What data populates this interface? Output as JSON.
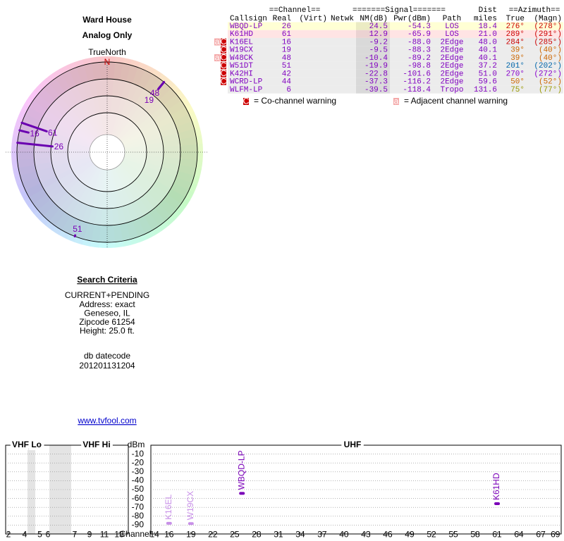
{
  "header": {
    "title": "Ward House",
    "subtitle": "Analog Only"
  },
  "table": {
    "group_headers": {
      "channel": "==Channel==",
      "signal": "=======Signal=======",
      "dist": "Dist",
      "azimuth": "==Azimuth=="
    },
    "columns": {
      "callsign": "Callsign",
      "real": "Real",
      "virt": "(Virt)",
      "netwk": "Netwk",
      "nm": "NM(dB)",
      "pwr": "Pwr(dBm)",
      "path": "Path",
      "miles": "miles",
      "true": "True",
      "magn": "(Magn)"
    },
    "rows": [
      {
        "callsign": "WBQD-LP",
        "real": "26",
        "nm": "24.5",
        "pwr": "-54.3",
        "path": "LOS",
        "miles": "18.4",
        "true": "276°",
        "magn": "(278°)",
        "row_color": "#ffffd4",
        "azimuth_color": "#cc0000"
      },
      {
        "callsign": "K61HD",
        "real": "61",
        "nm": "12.9",
        "pwr": "-65.9",
        "path": "LOS",
        "miles": "21.0",
        "true": "289°",
        "magn": "(291°)",
        "row_color": "#ffe4e4",
        "azimuth_color": "#cc0000"
      },
      {
        "callsign": "K16EL",
        "real": "16",
        "nm": "-9.2",
        "pwr": "-88.0",
        "path": "2Edge",
        "miles": "48.0",
        "true": "284°",
        "magn": "(285°)",
        "row_color": "#ececec",
        "azimuth_color": "#cc0000",
        "warnings": [
          "a",
          "C"
        ]
      },
      {
        "callsign": "W19CX",
        "real": "19",
        "nm": "-9.5",
        "pwr": "-88.3",
        "path": "2Edge",
        "miles": "40.1",
        "true": "39°",
        "magn": "(40°)",
        "row_color": "#ececec",
        "azimuth_color": "#cc6600",
        "warnings": [
          "C"
        ]
      },
      {
        "callsign": "W48CK",
        "real": "48",
        "nm": "-10.4",
        "pwr": "-89.2",
        "path": "2Edge",
        "miles": "40.1",
        "true": "39°",
        "magn": "(40°)",
        "row_color": "#ececec",
        "azimuth_color": "#cc6600",
        "warnings": [
          "a",
          "C"
        ]
      },
      {
        "callsign": "W51DT",
        "real": "51",
        "nm": "-19.9",
        "pwr": "-98.8",
        "path": "2Edge",
        "miles": "37.2",
        "true": "201°",
        "magn": "(202°)",
        "row_color": "#ececec",
        "azimuth_color": "#0066aa",
        "warnings": [
          "C"
        ]
      },
      {
        "callsign": "K42HI",
        "real": "42",
        "nm": "-22.8",
        "pwr": "-101.6",
        "path": "2Edge",
        "miles": "51.0",
        "true": "270°",
        "magn": "(272°)",
        "row_color": "#ececec",
        "azimuth_color": "#8800cc",
        "warnings": [
          "C"
        ]
      },
      {
        "callsign": "WCRD-LP",
        "real": "44",
        "nm": "-37.3",
        "pwr": "-116.2",
        "path": "2Edge",
        "miles": "59.6",
        "true": "50°",
        "magn": "(52°)",
        "row_color": "#ececec",
        "azimuth_color": "#cc6600",
        "warnings": [
          "C"
        ]
      },
      {
        "callsign": "WLFM-LP",
        "real": "6",
        "nm": "-39.5",
        "pwr": "-118.4",
        "path": "Tropo",
        "miles": "131.6",
        "true": "75°",
        "magn": "(77°)",
        "row_color": "#ececec",
        "azimuth_color": "#999900"
      }
    ],
    "legend": [
      {
        "icon": "C",
        "text": "= Co-channel warning",
        "color": "#cc0000"
      },
      {
        "icon": "a",
        "text": "= Adjacent channel warning",
        "color": "#f4a8a8"
      }
    ]
  },
  "polar": {
    "north_label": "TrueNorth",
    "north_mark": "N",
    "stations": [
      {
        "label": "48",
        "azimuth": 39,
        "nm": -10.4
      },
      {
        "label": "19",
        "azimuth": 39,
        "nm": -9.5
      },
      {
        "label": "61",
        "azimuth": 289,
        "nm": 12.9
      },
      {
        "label": "16",
        "azimuth": 284,
        "nm": -9.2
      },
      {
        "label": "26",
        "azimuth": 276,
        "nm": 24.5
      },
      {
        "label": "51",
        "azimuth": 201,
        "nm": -19.9
      }
    ]
  },
  "search": {
    "title": "Search Criteria",
    "lines": [
      "CURRENT+PENDING",
      "Address: exact",
      "Geneseo, IL",
      "Zipcode 61254",
      "Height: 25.0 ft."
    ],
    "datecode_label": "db datecode",
    "datecode": "201201131204",
    "link": "www.tvfool.com"
  },
  "chart_data": {
    "type": "scatter",
    "y_label": "dBm",
    "x_label": "Channel",
    "bands": [
      "VHF Lo",
      "VHF Hi",
      "UHF"
    ],
    "vhf_ticks": [
      2,
      4,
      5,
      6,
      7,
      9,
      11,
      13
    ],
    "xticks": [
      14,
      16,
      19,
      22,
      25,
      28,
      31,
      34,
      37,
      40,
      43,
      46,
      49,
      52,
      55,
      58,
      61,
      64,
      67,
      69
    ],
    "xlim": [
      13.6,
      69.7
    ],
    "ylim": [
      -100,
      0
    ],
    "yticks": [
      -10,
      -20,
      -30,
      -40,
      -50,
      -60,
      -70,
      -80,
      -90
    ],
    "grid": true,
    "labels": [
      "WBQD-LP",
      "K61HD",
      "K16EL",
      "W19CX"
    ],
    "x": [
      26,
      61,
      16,
      19
    ],
    "values": [
      -54.3,
      -65.9,
      -88.0,
      -88.3
    ],
    "colors": [
      "#7a00b8",
      "#7a00b8",
      "#c890e8",
      "#c890e8"
    ]
  }
}
